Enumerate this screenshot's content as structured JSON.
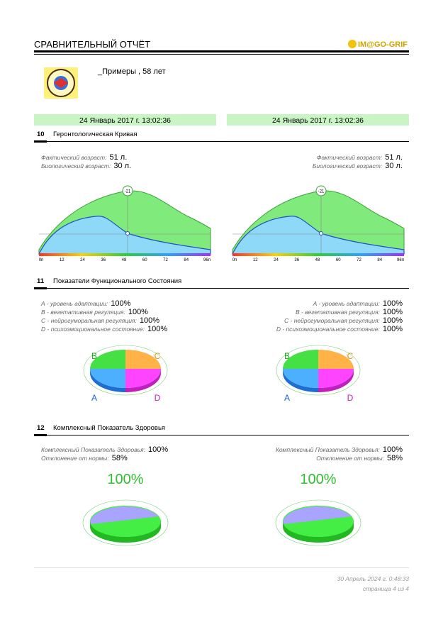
{
  "header": {
    "title": "СРАВНИТЕЛЬНЫЙ ОТЧЁТ",
    "logo": "IM@GO-GRIF"
  },
  "patient": {
    "name": "_Примеры , 58 лет"
  },
  "sections": [
    {
      "number": "10",
      "title": "Геронтологическая Кривая"
    },
    {
      "number": "11",
      "title": "Показатели Функционального Состояния"
    },
    {
      "number": "12",
      "title": "Комплексный Показатель Здоровья"
    }
  ],
  "curve": {
    "marker": "-21",
    "x_labels": [
      "0п",
      "12",
      "24",
      "36",
      "48",
      "60",
      "72",
      "84",
      "96п"
    ]
  },
  "pie_labels": [
    "A",
    "B",
    "C",
    "D"
  ],
  "columns": [
    {
      "date": "24 Январь 2017 г. 13:02:36",
      "ages": [
        {
          "label": "Фактический возраст:",
          "value": "51 л."
        },
        {
          "label": "Биологический возраст:",
          "value": "30 л."
        }
      ],
      "functional": [
        {
          "label": "A - уровень адаптации:",
          "value": "100%"
        },
        {
          "label": "B - вегетативная регуляция:",
          "value": "100%"
        },
        {
          "label": "C - нейрогуморальная регуляция:",
          "value": "100%"
        },
        {
          "label": "D - психоэмоциональное состояние:",
          "value": "100%"
        }
      ],
      "health": [
        {
          "label": "Комплексный Показатель Здоровья:",
          "value": "100%"
        },
        {
          "label": "Отклонение от нормы:",
          "value": "58%"
        }
      ],
      "health_big": "100%"
    },
    {
      "date": "24 Январь 2017 г. 13:02:36",
      "ages": [
        {
          "label": "Фактический возраст:",
          "value": "51 л."
        },
        {
          "label": "Биологический возраст:",
          "value": "30 л."
        }
      ],
      "functional": [
        {
          "label": "A - уровень адаптации:",
          "value": "100%"
        },
        {
          "label": "B - вегетативная регуляция:",
          "value": "100%"
        },
        {
          "label": "C - нейрогуморальная регуляция:",
          "value": "100%"
        },
        {
          "label": "D - психоэмоциональное состояние:",
          "value": "100%"
        }
      ],
      "health": [
        {
          "label": "Комплексный Показатель Здоровья:",
          "value": "100%"
        },
        {
          "label": "Отклонение от нормы:",
          "value": "58%"
        }
      ],
      "health_big": "100%"
    }
  ],
  "footer": {
    "date": "30 Апрель 2024 г. 0:48:33",
    "page": "страница 4 из 4"
  }
}
